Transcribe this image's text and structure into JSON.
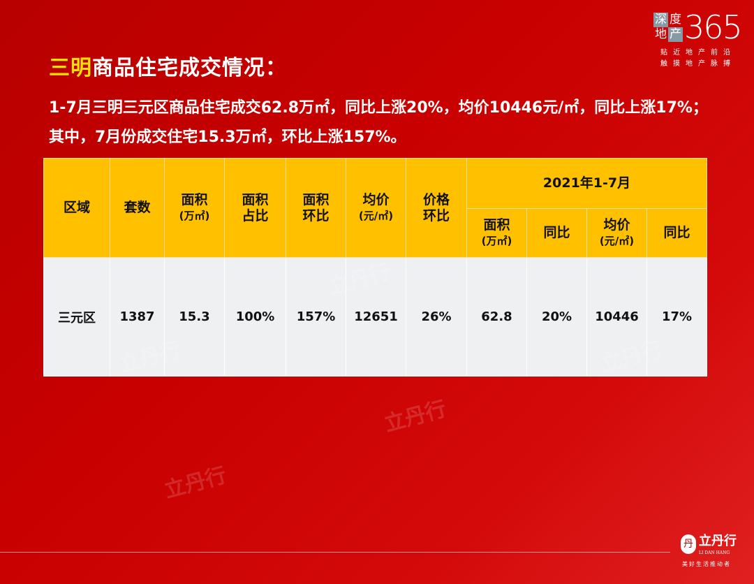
{
  "header": {
    "title_highlight": "三明",
    "title_rest": "商品住宅成交情况：",
    "summary": "1-7月三明三元区商品住宅成交62.8万㎡，同比上涨20%，均价10446元/㎡，同比上涨17%；其中，7月份成交住宅15.3万㎡，环比上涨157%。"
  },
  "logo": {
    "box_chars": [
      "深",
      "度",
      "地",
      "产"
    ],
    "number": "365",
    "tagline1": "贴近地产前沿",
    "tagline2": "触摸地产脉搏"
  },
  "brand": {
    "seal": "丹",
    "name": "立丹行",
    "en": "LI DAN HANG",
    "slogan": "美好生活推动者"
  },
  "watermark": "立丹行",
  "colors": {
    "background": "#c00000",
    "header_fill": "#ffc000",
    "highlight": "#ffe000"
  },
  "table": {
    "headers": [
      {
        "label": "区域",
        "sub": ""
      },
      {
        "label": "套数",
        "sub": ""
      },
      {
        "label": "面积",
        "sub": "(万㎡)"
      },
      {
        "label": "面积",
        "label2": "占比"
      },
      {
        "label": "面积",
        "label2": "环比"
      },
      {
        "label": "均价",
        "sub": "(元/㎡)"
      },
      {
        "label": "价格",
        "label2": "环比"
      }
    ],
    "group_header": "2021年1-7月",
    "group_subheaders": [
      {
        "label": "面积",
        "sub": "(万㎡)"
      },
      {
        "label": "同比",
        "sub": ""
      },
      {
        "label": "均价",
        "sub": "(元/㎡)"
      },
      {
        "label": "同比",
        "sub": ""
      }
    ],
    "rows": [
      [
        "三元区",
        "1387",
        "15.3",
        "100%",
        "157%",
        "12651",
        "26%",
        "62.8",
        "20%",
        "10446",
        "17%"
      ]
    ]
  }
}
